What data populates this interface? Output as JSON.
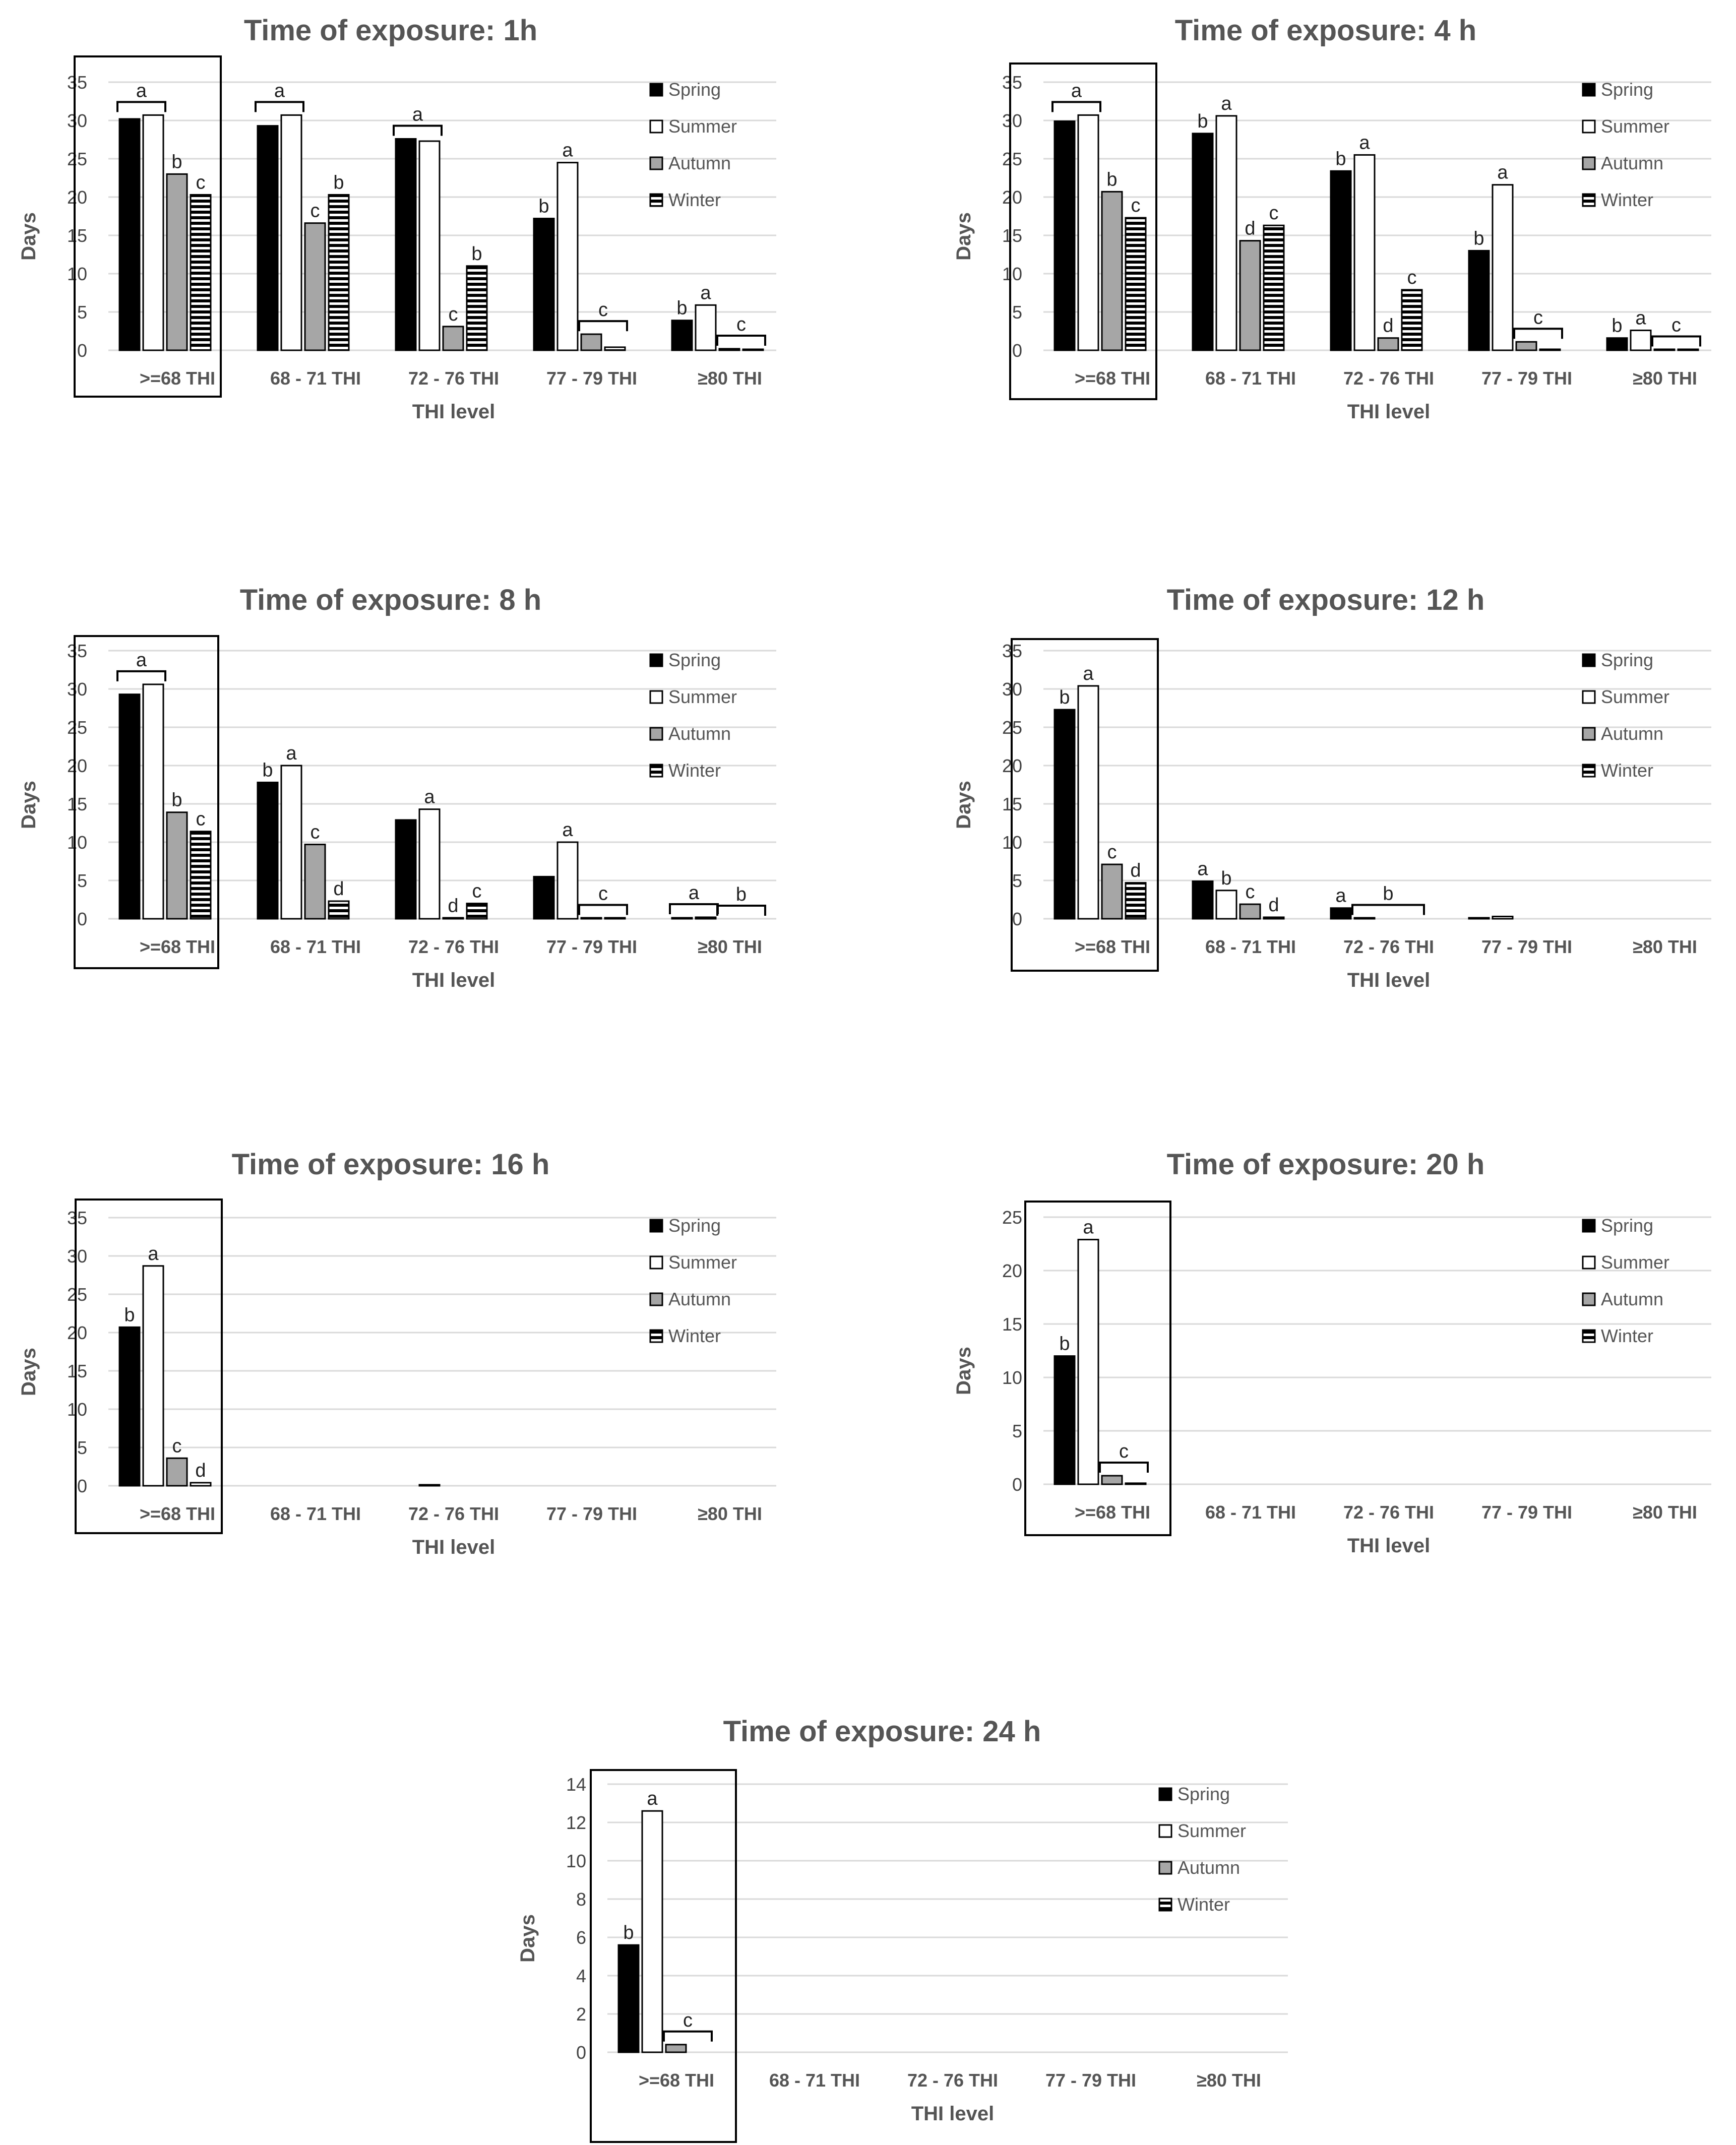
{
  "chart_data": [
    {
      "type": "bar",
      "title": "Time of exposure: 1h",
      "xlabel": "THI level",
      "ylabel": "Days",
      "ylim": [
        0,
        35
      ],
      "yticks": [
        0,
        5,
        10,
        15,
        20,
        25,
        30,
        35
      ],
      "categories": [
        ">=68 THI",
        "68 - 71 THI",
        "72 - 76 THI",
        "77 - 79 THI",
        "≥80 THI"
      ],
      "highlighted_category": ">=68 THI",
      "legend": [
        "Spring",
        "Summer",
        "Autumn",
        "Winter"
      ],
      "series": [
        {
          "name": "Spring",
          "values": [
            30.2,
            29.3,
            27.6,
            17.2,
            3.9
          ]
        },
        {
          "name": "Summer",
          "values": [
            30.7,
            30.7,
            27.3,
            24.5,
            5.9
          ]
        },
        {
          "name": "Autumn",
          "values": [
            23.0,
            16.6,
            3.1,
            2.1,
            0.2
          ]
        },
        {
          "name": "Winter",
          "values": [
            20.3,
            20.3,
            11.0,
            0.4,
            0.1
          ]
        }
      ],
      "significance": [
        {
          "category": 0,
          "bars": [
            0,
            1
          ],
          "label": "a"
        },
        {
          "category": 0,
          "bars": [
            2
          ],
          "label": "b"
        },
        {
          "category": 0,
          "bars": [
            3
          ],
          "label": "c"
        },
        {
          "category": 1,
          "bars": [
            0,
            1
          ],
          "label": "a"
        },
        {
          "category": 1,
          "bars": [
            2
          ],
          "label": "c"
        },
        {
          "category": 1,
          "bars": [
            3
          ],
          "label": "b"
        },
        {
          "category": 2,
          "bars": [
            0,
            1
          ],
          "label": "a"
        },
        {
          "category": 2,
          "bars": [
            2
          ],
          "label": "c"
        },
        {
          "category": 2,
          "bars": [
            3
          ],
          "label": "b"
        },
        {
          "category": 3,
          "bars": [
            0
          ],
          "label": "b"
        },
        {
          "category": 3,
          "bars": [
            1
          ],
          "label": "a"
        },
        {
          "category": 3,
          "bars": [
            2,
            3
          ],
          "label": "c"
        },
        {
          "category": 4,
          "bars": [
            0
          ],
          "label": "b"
        },
        {
          "category": 4,
          "bars": [
            1
          ],
          "label": "a"
        },
        {
          "category": 4,
          "bars": [
            2,
            3
          ],
          "label": "c"
        }
      ]
    },
    {
      "type": "bar",
      "title": "Time of exposure: 4 h",
      "xlabel": "THI level",
      "ylabel": "Days",
      "ylim": [
        0,
        35
      ],
      "yticks": [
        0,
        5,
        10,
        15,
        20,
        25,
        30,
        35
      ],
      "categories": [
        ">=68 THI",
        "68 - 71 THI",
        "72 - 76 THI",
        "77 - 79 THI",
        "≥80 THI"
      ],
      "highlighted_category": ">=68 THI",
      "legend": [
        "Spring",
        "Summer",
        "Autumn",
        "Winter"
      ],
      "series": [
        {
          "name": "Spring",
          "values": [
            29.9,
            28.3,
            23.4,
            13.0,
            1.6
          ]
        },
        {
          "name": "Summer",
          "values": [
            30.7,
            30.6,
            25.5,
            21.6,
            2.6
          ]
        },
        {
          "name": "Autumn",
          "values": [
            20.7,
            14.3,
            1.6,
            1.1,
            0.1
          ]
        },
        {
          "name": "Winter",
          "values": [
            17.3,
            16.3,
            7.9,
            0.1,
            0.1
          ]
        }
      ],
      "significance": [
        {
          "category": 0,
          "bars": [
            0,
            1
          ],
          "label": "a"
        },
        {
          "category": 0,
          "bars": [
            2
          ],
          "label": "b"
        },
        {
          "category": 0,
          "bars": [
            3
          ],
          "label": "c"
        },
        {
          "category": 1,
          "bars": [
            0
          ],
          "label": "b"
        },
        {
          "category": 1,
          "bars": [
            1
          ],
          "label": "a"
        },
        {
          "category": 1,
          "bars": [
            2
          ],
          "label": "d"
        },
        {
          "category": 1,
          "bars": [
            3
          ],
          "label": "c"
        },
        {
          "category": 2,
          "bars": [
            0
          ],
          "label": "b"
        },
        {
          "category": 2,
          "bars": [
            1
          ],
          "label": "a"
        },
        {
          "category": 2,
          "bars": [
            2
          ],
          "label": "d"
        },
        {
          "category": 2,
          "bars": [
            3
          ],
          "label": "c"
        },
        {
          "category": 3,
          "bars": [
            0
          ],
          "label": "b"
        },
        {
          "category": 3,
          "bars": [
            1
          ],
          "label": "a"
        },
        {
          "category": 3,
          "bars": [
            2,
            3
          ],
          "label": "c"
        },
        {
          "category": 4,
          "bars": [
            0
          ],
          "label": "b"
        },
        {
          "category": 4,
          "bars": [
            1
          ],
          "label": "a"
        },
        {
          "category": 4,
          "bars": [
            2,
            3
          ],
          "label": "c"
        }
      ]
    },
    {
      "type": "bar",
      "title": "Time of exposure: 8 h",
      "xlabel": "THI level",
      "ylabel": "Days",
      "ylim": [
        0,
        35
      ],
      "yticks": [
        0,
        5,
        10,
        15,
        20,
        25,
        30,
        35
      ],
      "categories": [
        ">=68 THI",
        "68 - 71 THI",
        "72 - 76 THI",
        "77 - 79 THI",
        "≥80 THI"
      ],
      "highlighted_category": ">=68 THI",
      "legend": [
        "Spring",
        "Summer",
        "Autumn",
        "Winter"
      ],
      "series": [
        {
          "name": "Spring",
          "values": [
            29.3,
            17.8,
            12.9,
            5.5,
            0.1
          ]
        },
        {
          "name": "Summer",
          "values": [
            30.6,
            20.0,
            14.3,
            10.0,
            0.2
          ]
        },
        {
          "name": "Autumn",
          "values": [
            13.9,
            9.7,
            0.1,
            0.1,
            0.0
          ]
        },
        {
          "name": "Winter",
          "values": [
            11.4,
            2.3,
            2.0,
            0.1,
            0.0
          ]
        }
      ],
      "significance": [
        {
          "category": 0,
          "bars": [
            0,
            1
          ],
          "label": "a"
        },
        {
          "category": 0,
          "bars": [
            2
          ],
          "label": "b"
        },
        {
          "category": 0,
          "bars": [
            3
          ],
          "label": "c"
        },
        {
          "category": 1,
          "bars": [
            0
          ],
          "label": "b"
        },
        {
          "category": 1,
          "bars": [
            1
          ],
          "label": "a"
        },
        {
          "category": 1,
          "bars": [
            2
          ],
          "label": "c"
        },
        {
          "category": 1,
          "bars": [
            3
          ],
          "label": "d"
        },
        {
          "category": 2,
          "bars": [
            1
          ],
          "label": "a"
        },
        {
          "category": 2,
          "bars": [
            2
          ],
          "label": "d"
        },
        {
          "category": 2,
          "bars": [
            3
          ],
          "label": "c"
        },
        {
          "category": 3,
          "bars": [
            1
          ],
          "label": "a"
        },
        {
          "category": 3,
          "bars": [
            2,
            3
          ],
          "label": "c"
        },
        {
          "category": 4,
          "bars": [
            0,
            1
          ],
          "label": "a"
        },
        {
          "category": 4,
          "bars": [
            2,
            3
          ],
          "label": "b"
        }
      ]
    },
    {
      "type": "bar",
      "title": "Time of exposure: 12 h",
      "xlabel": "THI level",
      "ylabel": "Days",
      "ylim": [
        0,
        35
      ],
      "yticks": [
        0,
        5,
        10,
        15,
        20,
        25,
        30,
        35
      ],
      "categories": [
        ">=68 THI",
        "68 - 71 THI",
        "72 - 76 THI",
        "77 - 79 THI",
        "≥80 THI"
      ],
      "highlighted_category": ">=68 THI",
      "legend": [
        "Spring",
        "Summer",
        "Autumn",
        "Winter"
      ],
      "series": [
        {
          "name": "Spring",
          "values": [
            27.3,
            4.9,
            1.4,
            0.1,
            0.0
          ]
        },
        {
          "name": "Summer",
          "values": [
            30.4,
            3.7,
            0.1,
            0.3,
            0.0
          ]
        },
        {
          "name": "Autumn",
          "values": [
            7.1,
            1.9,
            0.0,
            0.0,
            0.0
          ]
        },
        {
          "name": "Winter",
          "values": [
            4.7,
            0.2,
            0.0,
            0.0,
            0.0
          ]
        }
      ],
      "significance": [
        {
          "category": 0,
          "bars": [
            0
          ],
          "label": "b"
        },
        {
          "category": 0,
          "bars": [
            1
          ],
          "label": "a"
        },
        {
          "category": 0,
          "bars": [
            2
          ],
          "label": "c"
        },
        {
          "category": 0,
          "bars": [
            3
          ],
          "label": "d"
        },
        {
          "category": 1,
          "bars": [
            0
          ],
          "label": "a"
        },
        {
          "category": 1,
          "bars": [
            1
          ],
          "label": "b"
        },
        {
          "category": 1,
          "bars": [
            2
          ],
          "label": "c"
        },
        {
          "category": 1,
          "bars": [
            3
          ],
          "label": "d"
        },
        {
          "category": 2,
          "bars": [
            0
          ],
          "label": "a"
        },
        {
          "category": 2,
          "bars": [
            1,
            3
          ],
          "label": "b"
        }
      ]
    },
    {
      "type": "bar",
      "title": "Time of exposure: 16 h",
      "xlabel": "THI level",
      "ylabel": "Days",
      "ylim": [
        0,
        35
      ],
      "yticks": [
        0,
        5,
        10,
        15,
        20,
        25,
        30,
        35
      ],
      "categories": [
        ">=68 THI",
        "68 - 71 THI",
        "72 - 76 THI",
        "77 - 79 THI",
        "≥80 THI"
      ],
      "highlighted_category": ">=68 THI",
      "legend": [
        "Spring",
        "Summer",
        "Autumn",
        "Winter"
      ],
      "series": [
        {
          "name": "Spring",
          "values": [
            20.7,
            0.0,
            0.0,
            0.0,
            0.0
          ]
        },
        {
          "name": "Summer",
          "values": [
            28.7,
            0.0,
            0.1,
            0.0,
            0.0
          ]
        },
        {
          "name": "Autumn",
          "values": [
            3.6,
            0.0,
            0.0,
            0.0,
            0.0
          ]
        },
        {
          "name": "Winter",
          "values": [
            0.4,
            0.0,
            0.0,
            0.0,
            0.0
          ]
        }
      ],
      "significance": [
        {
          "category": 0,
          "bars": [
            0
          ],
          "label": "b"
        },
        {
          "category": 0,
          "bars": [
            1
          ],
          "label": "a"
        },
        {
          "category": 0,
          "bars": [
            2
          ],
          "label": "c"
        },
        {
          "category": 0,
          "bars": [
            3
          ],
          "label": "d"
        }
      ]
    },
    {
      "type": "bar",
      "title": "Time of exposure: 20 h",
      "xlabel": "THI level",
      "ylabel": "Days",
      "ylim": [
        0,
        25
      ],
      "yticks": [
        0,
        5,
        10,
        15,
        20,
        25
      ],
      "categories": [
        ">=68 THI",
        "68 - 71 THI",
        "72 - 76 THI",
        "77 - 79 THI",
        "≥80 THI"
      ],
      "highlighted_category": ">=68 THI",
      "legend": [
        "Spring",
        "Summer",
        "Autumn",
        "Winter"
      ],
      "series": [
        {
          "name": "Spring",
          "values": [
            12.0,
            0.0,
            0.0,
            0.0,
            0.0
          ]
        },
        {
          "name": "Summer",
          "values": [
            22.9,
            0.0,
            0.0,
            0.0,
            0.0
          ]
        },
        {
          "name": "Autumn",
          "values": [
            0.8,
            0.0,
            0.0,
            0.0,
            0.0
          ]
        },
        {
          "name": "Winter",
          "values": [
            0.1,
            0.0,
            0.0,
            0.0,
            0.0
          ]
        }
      ],
      "significance": [
        {
          "category": 0,
          "bars": [
            0
          ],
          "label": "b"
        },
        {
          "category": 0,
          "bars": [
            1
          ],
          "label": "a"
        },
        {
          "category": 0,
          "bars": [
            2,
            3
          ],
          "label": "c"
        }
      ]
    },
    {
      "type": "bar",
      "title": "Time of exposure: 24 h",
      "xlabel": "THI level",
      "ylabel": "Days",
      "ylim": [
        0,
        14
      ],
      "yticks": [
        0,
        2,
        4,
        6,
        8,
        10,
        12,
        14
      ],
      "categories": [
        ">=68 THI",
        "68 - 71 THI",
        "72 - 76 THI",
        "77 - 79 THI",
        "≥80 THI"
      ],
      "highlighted_category": ">=68 THI",
      "legend": [
        "Spring",
        "Summer",
        "Autumn",
        "Winter"
      ],
      "series": [
        {
          "name": "Spring",
          "values": [
            5.6,
            0.0,
            0.0,
            0.0,
            0.0
          ]
        },
        {
          "name": "Summer",
          "values": [
            12.6,
            0.0,
            0.0,
            0.0,
            0.0
          ]
        },
        {
          "name": "Autumn",
          "values": [
            0.4,
            0.0,
            0.0,
            0.0,
            0.0
          ]
        },
        {
          "name": "Winter",
          "values": [
            0.0,
            0.0,
            0.0,
            0.0,
            0.0
          ]
        }
      ],
      "significance": [
        {
          "category": 0,
          "bars": [
            0
          ],
          "label": "b"
        },
        {
          "category": 0,
          "bars": [
            1
          ],
          "label": "a"
        },
        {
          "category": 0,
          "bars": [
            2,
            3
          ],
          "label": "c"
        }
      ]
    }
  ]
}
